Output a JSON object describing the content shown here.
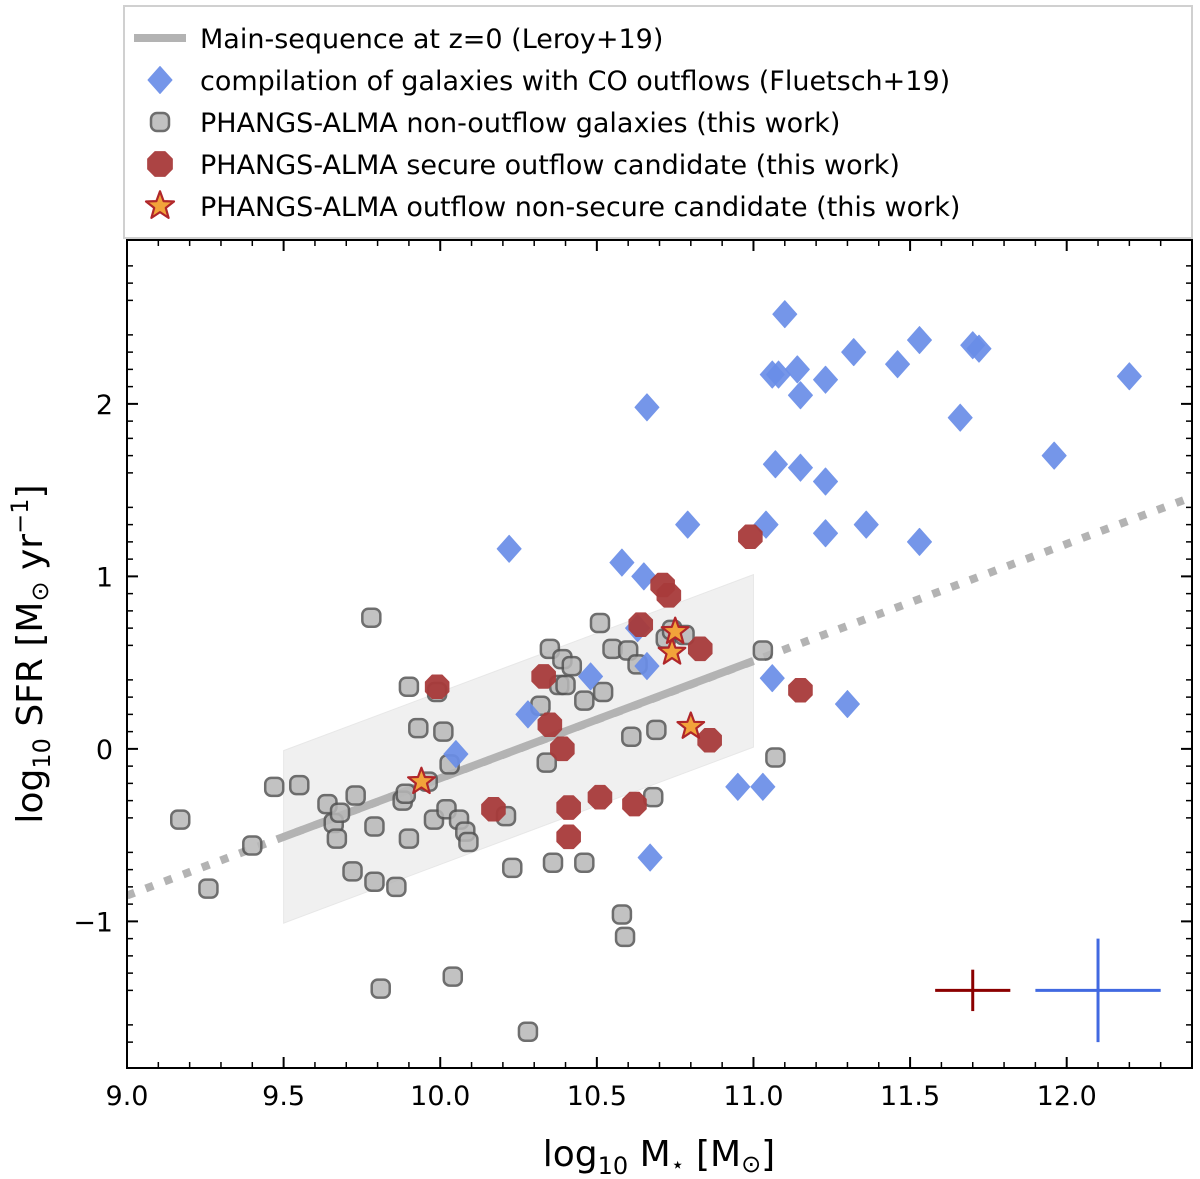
{
  "chart_data": {
    "type": "scatter",
    "xlabel": "log10 M⋆ [M⊙]",
    "ylabel": "log10 SFR [M⊙ yr−1]",
    "xlim": [
      9.0,
      12.4
    ],
    "ylim": [
      -1.85,
      2.95
    ],
    "xticks": [
      "9.0",
      "9.5",
      "10.0",
      "10.5",
      "11.0",
      "11.5",
      "12.0"
    ],
    "yticks": [
      "−1",
      "0",
      "1",
      "2"
    ],
    "main_sequence": {
      "name": "Main-sequence at z=0 (Leroy+19)",
      "solid": [
        [
          9.5,
          -0.51
        ],
        [
          11.0,
          0.51
        ]
      ],
      "dotted": [
        [
          9.0,
          -0.85
        ],
        [
          12.4,
          1.46
        ]
      ],
      "band_halfwidth": 0.5,
      "color": "#b3b3b3"
    },
    "series": [
      {
        "name": "compilation of galaxies with CO outflows (Fluetsch+19)",
        "marker": "diamond",
        "color": "#6a8ee8",
        "points": [
          [
            11.1,
            2.52
          ],
          [
            11.06,
            2.17
          ],
          [
            11.08,
            2.17
          ],
          [
            11.14,
            2.2
          ],
          [
            11.15,
            2.05
          ],
          [
            11.23,
            2.14
          ],
          [
            11.32,
            2.3
          ],
          [
            11.46,
            2.23
          ],
          [
            11.53,
            2.37
          ],
          [
            11.7,
            2.34
          ],
          [
            11.72,
            2.32
          ],
          [
            12.2,
            2.16
          ],
          [
            10.66,
            1.98
          ],
          [
            11.66,
            1.92
          ],
          [
            11.96,
            1.7
          ],
          [
            11.07,
            1.65
          ],
          [
            11.15,
            1.63
          ],
          [
            11.23,
            1.55
          ],
          [
            10.79,
            1.3
          ],
          [
            11.04,
            1.3
          ],
          [
            11.36,
            1.3
          ],
          [
            11.23,
            1.25
          ],
          [
            11.53,
            1.2
          ],
          [
            10.22,
            1.16
          ],
          [
            10.58,
            1.08
          ],
          [
            10.65,
            1.0
          ],
          [
            10.63,
            0.7
          ],
          [
            10.66,
            0.48
          ],
          [
            10.48,
            0.42
          ],
          [
            11.06,
            0.41
          ],
          [
            11.3,
            0.26
          ],
          [
            10.28,
            0.2
          ],
          [
            10.05,
            -0.03
          ],
          [
            10.95,
            -0.22
          ],
          [
            11.03,
            -0.22
          ],
          [
            10.67,
            -0.63
          ]
        ]
      },
      {
        "name": "PHANGS-ALMA non-outflow galaxies (this work)",
        "marker": "circle",
        "color": "#b8b8b8",
        "points": [
          [
            9.17,
            -0.41
          ],
          [
            9.26,
            -0.81
          ],
          [
            9.4,
            -0.56
          ],
          [
            9.47,
            -0.22
          ],
          [
            9.55,
            -0.21
          ],
          [
            9.64,
            -0.32
          ],
          [
            9.66,
            -0.43
          ],
          [
            9.67,
            -0.52
          ],
          [
            9.68,
            -0.37
          ],
          [
            9.72,
            -0.71
          ],
          [
            9.73,
            -0.27
          ],
          [
            9.78,
            0.76
          ],
          [
            9.79,
            -0.45
          ],
          [
            9.79,
            -0.77
          ],
          [
            9.81,
            -1.39
          ],
          [
            9.86,
            -0.8
          ],
          [
            9.88,
            -0.3
          ],
          [
            9.89,
            -0.26
          ],
          [
            9.9,
            0.36
          ],
          [
            9.9,
            -0.52
          ],
          [
            9.93,
            0.12
          ],
          [
            9.96,
            -0.19
          ],
          [
            9.98,
            -0.41
          ],
          [
            9.99,
            0.33
          ],
          [
            10.01,
            0.1
          ],
          [
            10.02,
            -0.35
          ],
          [
            10.03,
            -0.09
          ],
          [
            10.04,
            -1.32
          ],
          [
            10.06,
            -0.41
          ],
          [
            10.08,
            -0.48
          ],
          [
            10.09,
            -0.54
          ],
          [
            10.21,
            -0.39
          ],
          [
            10.23,
            -0.69
          ],
          [
            10.28,
            -1.64
          ],
          [
            10.32,
            0.25
          ],
          [
            10.34,
            -0.08
          ],
          [
            10.35,
            0.58
          ],
          [
            10.36,
            -0.66
          ],
          [
            10.38,
            0.37
          ],
          [
            10.39,
            0.52
          ],
          [
            10.4,
            0.37
          ],
          [
            10.42,
            0.48
          ],
          [
            10.46,
            0.28
          ],
          [
            10.46,
            -0.66
          ],
          [
            10.51,
            0.73
          ],
          [
            10.52,
            0.33
          ],
          [
            10.55,
            0.58
          ],
          [
            10.58,
            -0.96
          ],
          [
            10.59,
            -1.09
          ],
          [
            10.6,
            0.57
          ],
          [
            10.61,
            0.07
          ],
          [
            10.63,
            0.49
          ],
          [
            10.68,
            -0.28
          ],
          [
            10.69,
            0.11
          ],
          [
            10.72,
            0.64
          ],
          [
            10.74,
            0.69
          ],
          [
            10.78,
            0.66
          ],
          [
            11.03,
            0.57
          ],
          [
            11.07,
            -0.05
          ]
        ]
      },
      {
        "name": "PHANGS-ALMA secure outflow candidate (this work)",
        "marker": "octagon",
        "color": "#a83b3b",
        "points": [
          [
            9.99,
            0.36
          ],
          [
            10.17,
            -0.35
          ],
          [
            10.33,
            0.42
          ],
          [
            10.35,
            0.14
          ],
          [
            10.39,
            0.0
          ],
          [
            10.41,
            -0.34
          ],
          [
            10.41,
            -0.51
          ],
          [
            10.51,
            -0.28
          ],
          [
            10.62,
            -0.32
          ],
          [
            10.64,
            0.72
          ],
          [
            10.71,
            0.95
          ],
          [
            10.73,
            0.89
          ],
          [
            10.83,
            0.58
          ],
          [
            10.86,
            0.05
          ],
          [
            10.99,
            1.23
          ],
          [
            11.15,
            0.34
          ]
        ]
      },
      {
        "name": "PHANGS-ALMA outflow non-secure candidate (this work)",
        "marker": "star",
        "color": "#f2a33a",
        "edge": "#b0262a",
        "points": [
          [
            9.94,
            -0.19
          ],
          [
            10.74,
            0.56
          ],
          [
            10.75,
            0.68
          ],
          [
            10.8,
            0.13
          ]
        ]
      }
    ],
    "error_bars": [
      {
        "x": 11.7,
        "y": -1.4,
        "xerr": 0.12,
        "yerr": 0.12,
        "color": "#8b0000"
      },
      {
        "x": 12.1,
        "y": -1.4,
        "xerr": 0.2,
        "yerr": 0.3,
        "color": "#4169e1"
      }
    ],
    "legend": {
      "position": "top",
      "entries": [
        "Main-sequence at z=0 (Leroy+19)",
        "compilation of galaxies with CO outflows (Fluetsch+19)",
        "PHANGS-ALMA non-outflow galaxies (this work)",
        "PHANGS-ALMA secure outflow candidate (this work)",
        "PHANGS-ALMA outflow non-secure candidate (this work)"
      ]
    }
  }
}
